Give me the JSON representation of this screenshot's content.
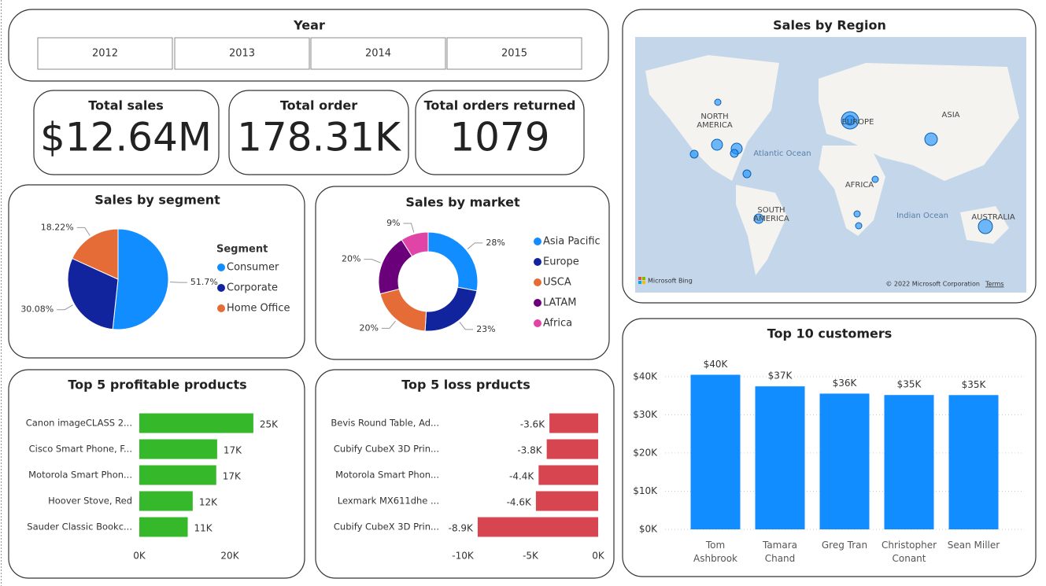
{
  "slicer": {
    "title": "Year",
    "items": [
      "2012",
      "2013",
      "2014",
      "2015"
    ]
  },
  "cards": [
    {
      "title": "Total sales",
      "value": "$12.64M"
    },
    {
      "title": "Total order",
      "value": "178.31K"
    },
    {
      "title": "Total orders returned",
      "value": "1079"
    }
  ],
  "map": {
    "title": "Sales by Region",
    "labels": [
      "NORTH AMERICA",
      "EUROPE",
      "ASIA",
      "AFRICA",
      "SOUTH AMERICA",
      "AUSTRALIA",
      "Atlantic Ocean",
      "Indian Ocean"
    ],
    "brand": "Microsoft Bing",
    "copyright": "© 2022 Microsoft Corporation",
    "terms": "Terms"
  },
  "chart_data": [
    {
      "type": "pie",
      "title": "Sales by segment",
      "legend_title": "Segment",
      "categories": [
        "Consumer",
        "Corporate",
        "Home Office"
      ],
      "values": [
        51.7,
        30.08,
        18.22
      ],
      "value_labels": [
        "51.7%",
        "30.08%",
        "18.22%"
      ],
      "colors": [
        "#118dff",
        "#12239e",
        "#e66c37"
      ]
    },
    {
      "type": "donut",
      "title": "Sales by market",
      "categories": [
        "Asia Pacific",
        "Europe",
        "USCA",
        "LATAM",
        "Africa"
      ],
      "values": [
        28,
        23,
        20,
        20,
        9
      ],
      "value_labels": [
        "28%",
        "23%",
        "20%",
        "20%",
        "9%"
      ],
      "colors": [
        "#118dff",
        "#12239e",
        "#e66c37",
        "#6b007b",
        "#e044a7"
      ]
    },
    {
      "type": "bar",
      "horizontal": true,
      "title": "Top 5 profitable products",
      "categories": [
        "Canon imageCLASS 2...",
        "Cisco Smart Phone, F...",
        "Motorola Smart Phon...",
        "Hoover Stove, Red",
        "Sauder Classic Bookc..."
      ],
      "values": [
        25200,
        17200,
        17000,
        11800,
        10700
      ],
      "value_labels": [
        "25K",
        "17K",
        "17K",
        "12K",
        "11K"
      ],
      "color": "#35b82a",
      "xlim": [
        0,
        30000
      ],
      "xticks": [
        {
          "value": 0,
          "label": "0K"
        },
        {
          "value": 20000,
          "label": "20K"
        }
      ]
    },
    {
      "type": "bar",
      "horizontal": true,
      "title": "Top 5 loss prducts",
      "categories": [
        "Bevis Round Table, Ad...",
        "Cubify CubeX 3D Prin...",
        "Motorola Smart Phon...",
        "Lexmark MX611dhe ...",
        "Cubify CubeX 3D Prin..."
      ],
      "values": [
        -3600,
        -3800,
        -4400,
        -4600,
        -8900
      ],
      "value_labels": [
        "-3.6K",
        "-3.8K",
        "-4.4K",
        "-4.6K",
        "-8.9K"
      ],
      "color": "#d64550",
      "xlim": [
        -10000,
        0
      ],
      "xticks": [
        {
          "value": -10000,
          "label": "-10K"
        },
        {
          "value": -5000,
          "label": "-5K"
        },
        {
          "value": 0,
          "label": "0K"
        }
      ]
    },
    {
      "type": "bar",
      "horizontal": false,
      "title": "Top 10 customers",
      "categories": [
        "Tom Ashbrook",
        "Tamara Chand",
        "Greg Tran",
        "Christopher Conant",
        "Sean Miller"
      ],
      "values": [
        40488,
        37457,
        35551,
        35187,
        35170
      ],
      "value_labels": [
        "$40K",
        "$37K",
        "$36K",
        "$35K",
        "$35K"
      ],
      "color": "#118dff",
      "ylim": [
        0,
        48000
      ],
      "yticks": [
        {
          "value": 0,
          "label": "$0K"
        },
        {
          "value": 10000,
          "label": "$10K"
        },
        {
          "value": 20000,
          "label": "$20K"
        },
        {
          "value": 30000,
          "label": "$30K"
        },
        {
          "value": 40000,
          "label": "$40K"
        }
      ],
      "grid": true
    }
  ]
}
